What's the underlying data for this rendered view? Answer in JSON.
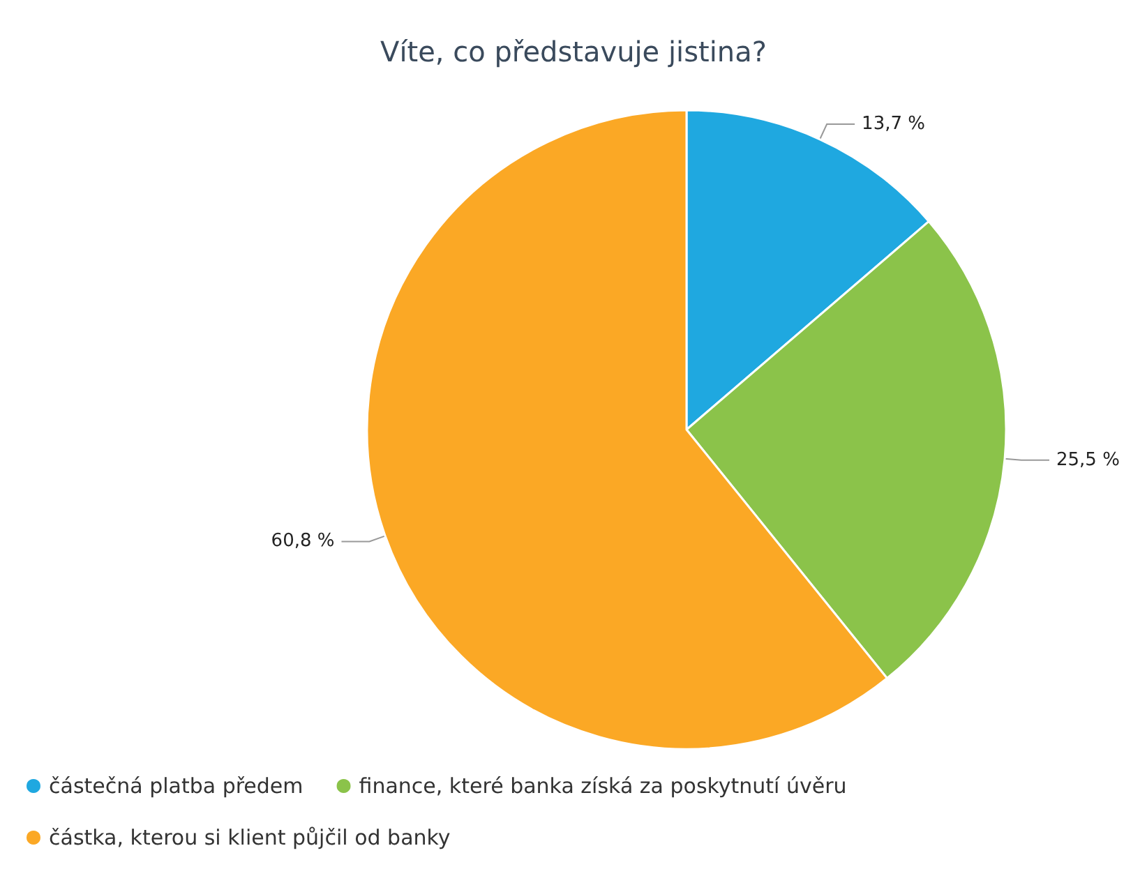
{
  "chart_data": {
    "type": "pie",
    "title": "Víte, co představuje jistina?",
    "categories": [
      "částečná platba předem",
      "finance, které banka získá za poskytnutí úvěru",
      "částka, kterou si klient půjčil od banky"
    ],
    "values": [
      13.7,
      25.5,
      60.8
    ],
    "value_labels": [
      "13,7 %",
      "25,5 %",
      "60,8 %"
    ],
    "colors": [
      "#1fa8e0",
      "#8bc34a",
      "#fba825"
    ],
    "legend": "bottom left"
  }
}
